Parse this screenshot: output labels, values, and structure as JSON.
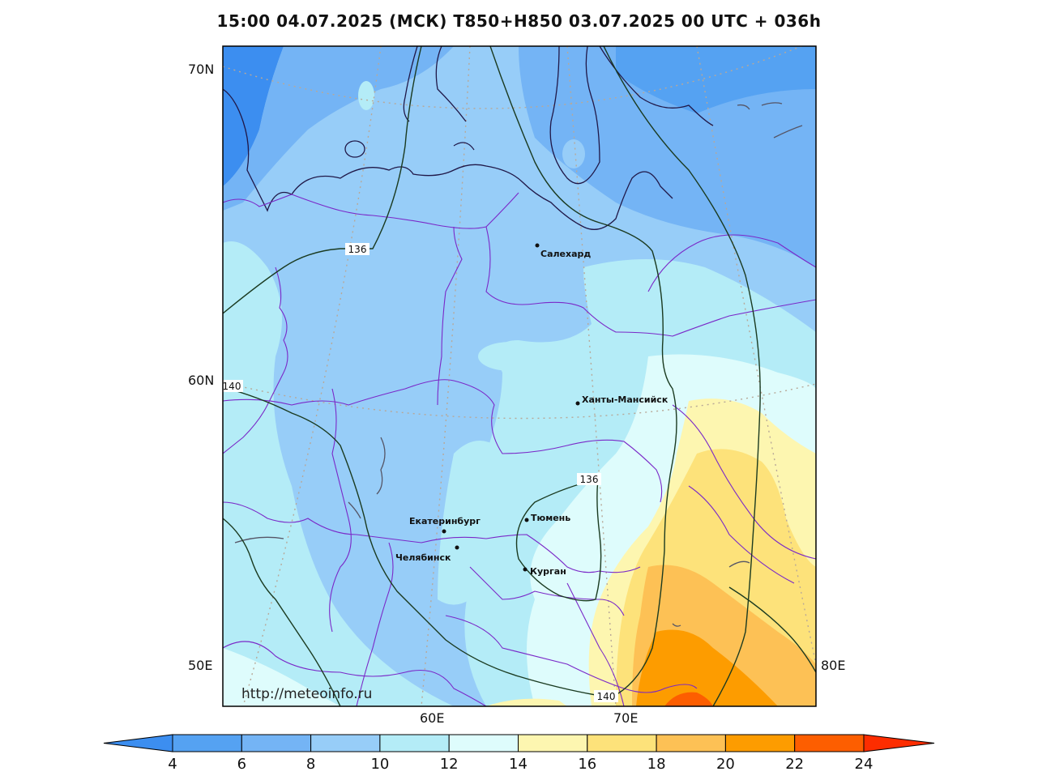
{
  "title": "15:00 04.07.2025 (МСК) T850+H850 03.07.2025 00 UTC + 036h",
  "watermark": "http://meteoinfo.ru",
  "lat_labels": [
    "70N",
    "60N",
    "50E"
  ],
  "lon_labels": [
    "60E",
    "70E",
    "80E"
  ],
  "cities": [
    {
      "name": "Салехард"
    },
    {
      "name": "Ханты-Мансийск"
    },
    {
      "name": "Екатеринбург"
    },
    {
      "name": "Тюмень"
    },
    {
      "name": "Челябинск"
    },
    {
      "name": "Курган"
    }
  ],
  "contours": [
    {
      "label": "136"
    },
    {
      "label": "140"
    },
    {
      "label": "136"
    },
    {
      "label": "140"
    }
  ],
  "colorbar": {
    "ticks": [
      "4",
      "6",
      "8",
      "10",
      "12",
      "14",
      "16",
      "18",
      "20",
      "22",
      "24"
    ],
    "colors": [
      "#3c8ef0",
      "#55a2f2",
      "#74b4f5",
      "#97cdf8",
      "#b4ecf7",
      "#defcfc",
      "#fdf6b0",
      "#fde27a",
      "#fdc155",
      "#fd9c00",
      "#fd5e00",
      "#fd2d00"
    ]
  }
}
